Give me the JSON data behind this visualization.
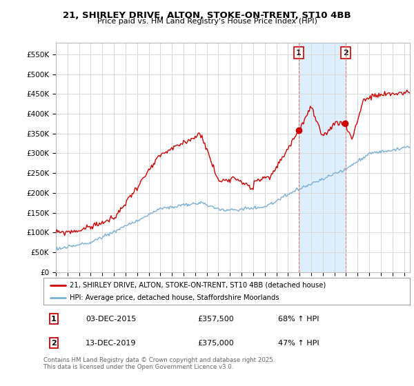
{
  "title": "21, SHIRLEY DRIVE, ALTON, STOKE-ON-TRENT, ST10 4BB",
  "subtitle": "Price paid vs. HM Land Registry's House Price Index (HPI)",
  "legend_line1": "21, SHIRLEY DRIVE, ALTON, STOKE-ON-TRENT, ST10 4BB (detached house)",
  "legend_line2": "HPI: Average price, detached house, Staffordshire Moorlands",
  "annotation1_date": "03-DEC-2015",
  "annotation1_price": "£357,500",
  "annotation1_hpi": "68% ↑ HPI",
  "annotation2_date": "13-DEC-2019",
  "annotation2_price": "£375,000",
  "annotation2_hpi": "47% ↑ HPI",
  "footnote": "Contains HM Land Registry data © Crown copyright and database right 2025.\nThis data is licensed under the Open Government Licence v3.0.",
  "red_color": "#cc0000",
  "blue_color": "#7ab0d4",
  "shaded_color": "#ddeeff",
  "dashed_color": "#e08080",
  "background_color": "#ffffff",
  "grid_color": "#d8d8d8",
  "ylim": [
    0,
    580000
  ],
  "yticks": [
    0,
    50000,
    100000,
    150000,
    200000,
    250000,
    300000,
    350000,
    400000,
    450000,
    500000,
    550000
  ],
  "ytick_labels": [
    "£0",
    "£50K",
    "£100K",
    "£150K",
    "£200K",
    "£250K",
    "£300K",
    "£350K",
    "£400K",
    "£450K",
    "£500K",
    "£550K"
  ],
  "sale1_year": 2015.92,
  "sale1_value": 357500,
  "sale2_year": 2019.95,
  "sale2_value": 375000,
  "xmin": 1995,
  "xmax": 2025.5
}
